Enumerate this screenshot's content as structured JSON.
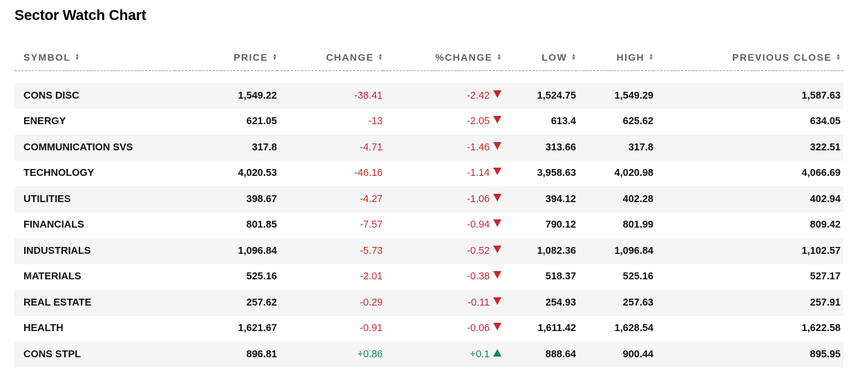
{
  "title": "Sector Watch Chart",
  "columns": [
    {
      "label": "SYMBOL",
      "key": "symbol"
    },
    {
      "label": "PRICE",
      "key": "price"
    },
    {
      "label": "CHANGE",
      "key": "change"
    },
    {
      "label": "%CHANGE",
      "key": "pct_change"
    },
    {
      "label": "LOW",
      "key": "low"
    },
    {
      "label": "HIGH",
      "key": "high"
    },
    {
      "label": "PREVIOUS CLOSE",
      "key": "prev_close"
    }
  ],
  "sort_icon": "sort-updown-icon",
  "colors": {
    "negative": "#c8282d",
    "positive": "#118a4e",
    "stripe": "#f5f5f5"
  },
  "rows": [
    {
      "symbol": "CONS DISC",
      "price": "1,549.22",
      "change": "-38.41",
      "pct_change": "-2.42",
      "direction": "down",
      "low": "1,524.75",
      "high": "1,549.29",
      "prev_close": "1,587.63"
    },
    {
      "symbol": "ENERGY",
      "price": "621.05",
      "change": "-13",
      "pct_change": "-2.05",
      "direction": "down",
      "low": "613.4",
      "high": "625.62",
      "prev_close": "634.05"
    },
    {
      "symbol": "COMMUNICATION SVS",
      "price": "317.8",
      "change": "-4.71",
      "pct_change": "-1.46",
      "direction": "down",
      "low": "313.66",
      "high": "317.8",
      "prev_close": "322.51"
    },
    {
      "symbol": "TECHNOLOGY",
      "price": "4,020.53",
      "change": "-46.16",
      "pct_change": "-1.14",
      "direction": "down",
      "low": "3,958.63",
      "high": "4,020.98",
      "prev_close": "4,066.69"
    },
    {
      "symbol": "UTILITIES",
      "price": "398.67",
      "change": "-4.27",
      "pct_change": "-1.06",
      "direction": "down",
      "low": "394.12",
      "high": "402.28",
      "prev_close": "402.94"
    },
    {
      "symbol": "FINANCIALS",
      "price": "801.85",
      "change": "-7.57",
      "pct_change": "-0.94",
      "direction": "down",
      "low": "790.12",
      "high": "801.99",
      "prev_close": "809.42"
    },
    {
      "symbol": "INDUSTRIALS",
      "price": "1,096.84",
      "change": "-5.73",
      "pct_change": "-0.52",
      "direction": "down",
      "low": "1,082.36",
      "high": "1,096.84",
      "prev_close": "1,102.57"
    },
    {
      "symbol": "MATERIALS",
      "price": "525.16",
      "change": "-2.01",
      "pct_change": "-0.38",
      "direction": "down",
      "low": "518.37",
      "high": "525.16",
      "prev_close": "527.17"
    },
    {
      "symbol": "REAL ESTATE",
      "price": "257.62",
      "change": "-0.29",
      "pct_change": "-0.11",
      "direction": "down",
      "low": "254.93",
      "high": "257.63",
      "prev_close": "257.91"
    },
    {
      "symbol": "HEALTH",
      "price": "1,621.67",
      "change": "-0.91",
      "pct_change": "-0.06",
      "direction": "down",
      "low": "1,611.42",
      "high": "1,628.54",
      "prev_close": "1,622.58"
    },
    {
      "symbol": "CONS STPL",
      "price": "896.81",
      "change": "+0.86",
      "pct_change": "+0.1",
      "direction": "up",
      "low": "888.64",
      "high": "900.44",
      "prev_close": "895.95"
    }
  ]
}
